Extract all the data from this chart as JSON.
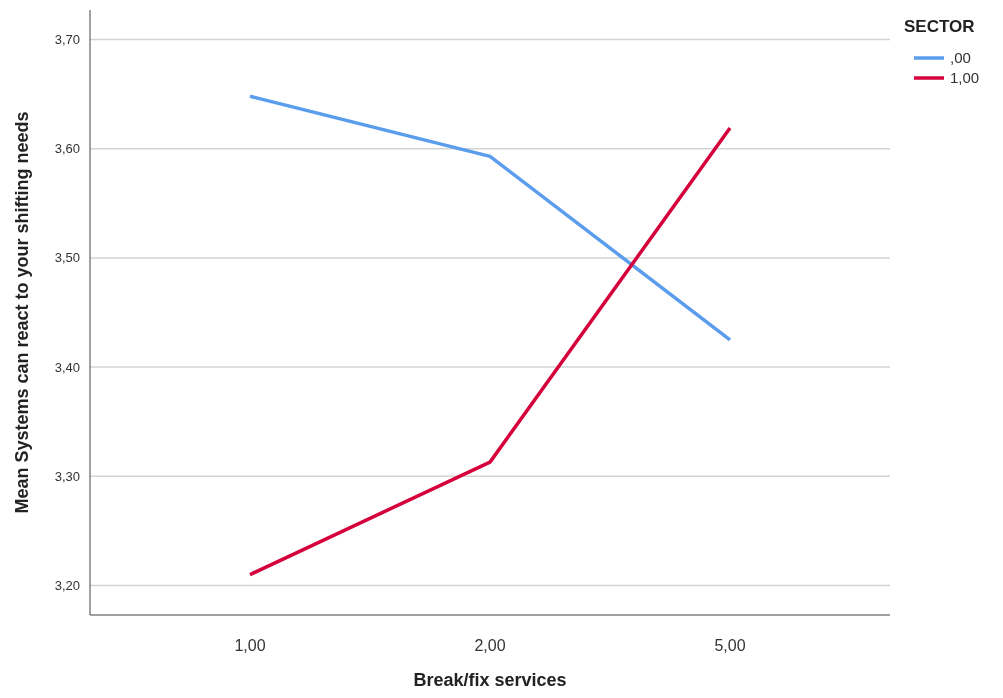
{
  "chart_data": {
    "type": "line",
    "xlabel": "Break/fix services",
    "ylabel": "Mean Systems can react to your shifting needs",
    "legend_title": "SECTOR",
    "categories": [
      "1,00",
      "2,00",
      "5,00"
    ],
    "series": [
      {
        "name": ",00",
        "color": "#5b9ded",
        "values": [
          3.648,
          3.593,
          3.425
        ]
      },
      {
        "name": "1,00",
        "color": "#d5003b",
        "values": [
          3.21,
          3.313,
          3.619
        ]
      }
    ],
    "ylim": [
      3.173,
      3.727
    ],
    "yticks": [
      {
        "value": 3.2,
        "label": "3,20"
      },
      {
        "value": 3.3,
        "label": "3,30"
      },
      {
        "value": 3.4,
        "label": "3,40"
      },
      {
        "value": 3.5,
        "label": "3,50"
      },
      {
        "value": 3.6,
        "label": "3,60"
      },
      {
        "value": 3.7,
        "label": "3,70"
      }
    ],
    "grid": "y",
    "legend": "top right",
    "marker": "none",
    "line_style": "solid"
  }
}
